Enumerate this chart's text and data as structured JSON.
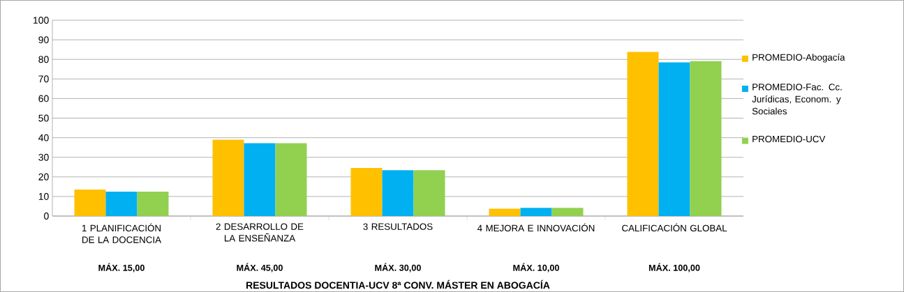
{
  "chart_data": {
    "type": "bar",
    "title": "RESULTADOS DOCENTIA-UCV 8ª CONV. MÁSTER EN ABOGACÍA",
    "categories": [
      "1 PLANIFICACIÓN DE LA DOCENCIA",
      "2 DESARROLLO DE LA ENSEÑANZA",
      "3 RESULTADOS",
      "4 MEJORA E INNOVACIÓN",
      "CALIFICACIÓN GLOBAL"
    ],
    "annotations": [
      "MÁX. 15,00",
      "MÁX. 45,00",
      "MÁX. 30,00",
      "MÁX. 10,00",
      "MÁX. 100,00"
    ],
    "series": [
      {
        "name": "PROMEDIO-Abogacía",
        "color": "#ffc000",
        "values": [
          13.5,
          39.0,
          24.6,
          3.7,
          83.8
        ]
      },
      {
        "name": "PROMEDIO-Fac. Cc. Jurídicas, Econom. y Sociales",
        "color": "#00b0f0",
        "values": [
          12.5,
          37.2,
          23.4,
          4.2,
          78.5
        ]
      },
      {
        "name": "PROMEDIO-UCV",
        "color": "#92d050",
        "values": [
          12.5,
          37.2,
          23.4,
          4.2,
          79.1
        ]
      }
    ],
    "ylim": [
      0,
      100
    ],
    "yticks": [
      0,
      10,
      20,
      30,
      40,
      50,
      60,
      70,
      80,
      90,
      100
    ],
    "grid": "y",
    "legend": "right"
  }
}
